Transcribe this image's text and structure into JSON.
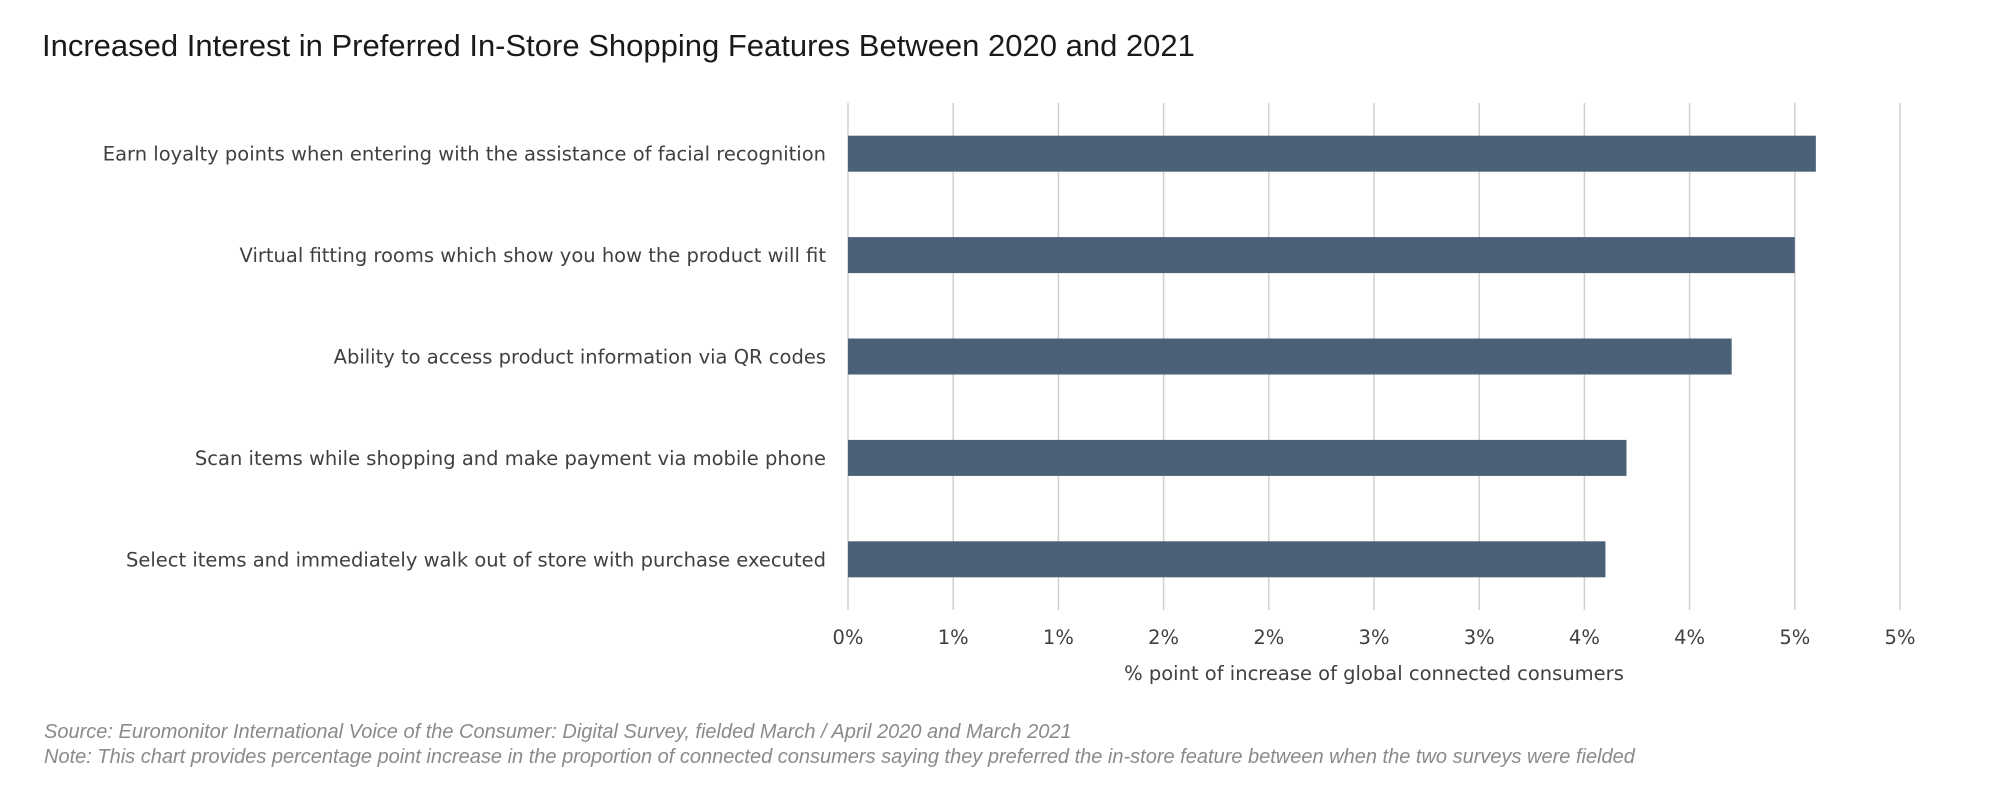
{
  "title": "Increased Interest in Preferred In-Store Shopping Features Between 2020 and 2021",
  "source": "Source: Euromonitor International Voice of the Consumer: Digital Survey, fielded March / April 2020 and March 2021",
  "note": "Note: This chart provides percentage point increase in the proportion of connected consumers saying they preferred the in-store feature between when the two surveys were fielded",
  "chart_data": {
    "type": "bar",
    "orientation": "horizontal",
    "title": "Increased Interest in Preferred In-Store Shopping Features Between 2020 and 2021",
    "xlabel": "% point of increase of global connected consumers",
    "ylabel": "",
    "categories": [
      "Earn loyalty points when entering with the assistance of facial recognition",
      "Virtual fitting rooms which show you how the product will fit",
      "Ability to access product information via QR codes",
      "Scan items while shopping and make payment via mobile phone",
      "Select items and immediately walk out of store with purchase executed"
    ],
    "values": [
      4.6,
      4.5,
      4.2,
      3.7,
      3.6
    ],
    "xlim": [
      0,
      5
    ],
    "tick_labels": [
      "0%",
      "1%",
      "1%",
      "2%",
      "2%",
      "3%",
      "3%",
      "4%",
      "4%",
      "5%",
      "5%"
    ],
    "grid": "vertical",
    "bar_color": "#4a6178",
    "grid_color": "#d0d0d0"
  }
}
